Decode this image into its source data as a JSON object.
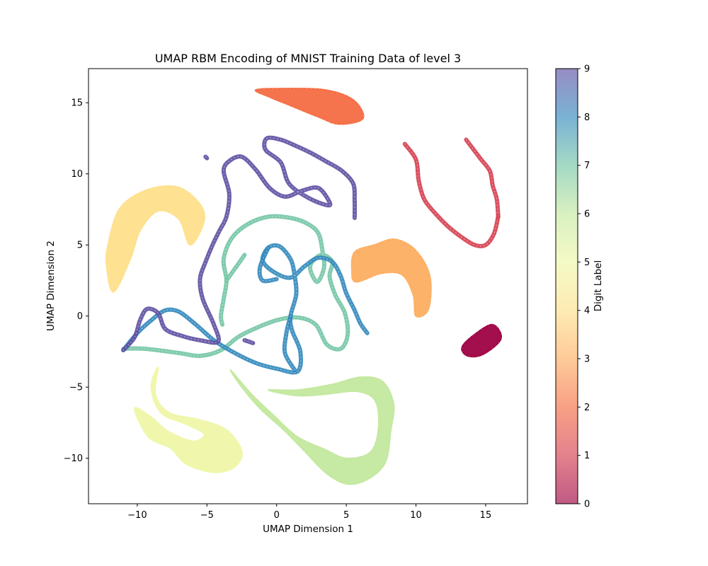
{
  "chart_data": {
    "type": "scatter",
    "title": "UMAP RBM Encoding of MNIST Training Data of level 3",
    "xlabel": "UMAP Dimension 1",
    "ylabel": "UMAP Dimension 2",
    "xlim": [
      -13.5,
      18
    ],
    "ylim": [
      -13.2,
      17.4
    ],
    "xticks": [
      -10,
      -5,
      0,
      5,
      10,
      15
    ],
    "yticks": [
      -10,
      -5,
      0,
      5,
      10,
      15
    ],
    "grid": false,
    "colormap": "Spectral",
    "colorbar": {
      "label": "Digit Label",
      "range": [
        0,
        9
      ],
      "ticks": [
        0,
        1,
        2,
        3,
        4,
        5,
        6,
        7,
        8,
        9
      ]
    },
    "series": [
      {
        "label": 0,
        "color": "#9e0142",
        "shape": "blob",
        "points": [
          [
            14.2,
            -1.3
          ],
          [
            15.5,
            -0.6
          ],
          [
            16.1,
            -1.6
          ],
          [
            14.8,
            -2.7
          ],
          [
            13.7,
            -2.8
          ],
          [
            13.3,
            -2.2
          ]
        ]
      },
      {
        "label": 1,
        "color": "#d53e4f",
        "shape": "ribbons",
        "paths": [
          [
            [
              9.2,
              12.1
            ],
            [
              10.0,
              11.0
            ],
            [
              10.2,
              9.5
            ],
            [
              10.6,
              8.2
            ],
            [
              11.4,
              7.2
            ],
            [
              12.3,
              6.3
            ],
            [
              13.2,
              5.6
            ],
            [
              14.2,
              5.0
            ],
            [
              15.0,
              5.0
            ],
            [
              15.6,
              5.8
            ],
            [
              15.9,
              7.0
            ]
          ],
          [
            [
              13.6,
              12.4
            ],
            [
              14.6,
              11.1
            ],
            [
              15.3,
              10.2
            ],
            [
              15.5,
              9.2
            ],
            [
              15.8,
              8.2
            ],
            [
              15.9,
              7.0
            ]
          ]
        ]
      },
      {
        "label": 2,
        "color": "#f46d43",
        "shape": "blob",
        "points": [
          [
            -1.5,
            15.9
          ],
          [
            0.5,
            16.0
          ],
          [
            3.5,
            15.9
          ],
          [
            5.5,
            15.2
          ],
          [
            6.2,
            13.9
          ],
          [
            4.5,
            13.5
          ],
          [
            3.0,
            14.0
          ],
          [
            1.0,
            14.8
          ],
          [
            -0.5,
            15.4
          ]
        ]
      },
      {
        "label": 3,
        "color": "#fdae61",
        "shape": "blob",
        "points": [
          [
            5.6,
            4.5
          ],
          [
            7.0,
            5.0
          ],
          [
            8.5,
            5.4
          ],
          [
            10.0,
            4.6
          ],
          [
            11.0,
            2.8
          ],
          [
            10.9,
            0.5
          ],
          [
            10.0,
            0.0
          ],
          [
            9.8,
            1.5
          ],
          [
            9.0,
            2.9
          ],
          [
            7.5,
            3.0
          ],
          [
            5.7,
            2.4
          ],
          [
            5.4,
            3.2
          ]
        ]
      },
      {
        "label": 4,
        "color": "#fee08b",
        "shape": "blob",
        "points": [
          [
            -12.1,
            5.0
          ],
          [
            -11.3,
            7.5
          ],
          [
            -9.5,
            8.8
          ],
          [
            -7.2,
            9.1
          ],
          [
            -5.6,
            8.0
          ],
          [
            -5.2,
            6.7
          ],
          [
            -6.2,
            5.0
          ],
          [
            -7.0,
            6.8
          ],
          [
            -8.5,
            7.4
          ],
          [
            -9.8,
            6.0
          ],
          [
            -10.5,
            4.0
          ],
          [
            -11.7,
            1.7
          ],
          [
            -12.2,
            3.5
          ]
        ]
      },
      {
        "label": 5,
        "color": "#eff7a8",
        "shape": "blob",
        "points": [
          [
            -8.5,
            -3.6
          ],
          [
            -8.7,
            -5.5
          ],
          [
            -7.7,
            -6.8
          ],
          [
            -5.5,
            -7.3
          ],
          [
            -3.6,
            -8.0
          ],
          [
            -2.5,
            -9.5
          ],
          [
            -3.0,
            -10.6
          ],
          [
            -4.5,
            -11.0
          ],
          [
            -6.5,
            -10.4
          ],
          [
            -7.6,
            -9.3
          ],
          [
            -9.2,
            -8.5
          ],
          [
            -10.2,
            -6.5
          ],
          [
            -9.0,
            -7.1
          ],
          [
            -7.8,
            -8.1
          ],
          [
            -6.0,
            -8.8
          ],
          [
            -5.2,
            -8.3
          ],
          [
            -6.5,
            -7.6
          ],
          [
            -8.3,
            -6.8
          ],
          [
            -9.0,
            -5.0
          ]
        ]
      },
      {
        "label": 6,
        "color": "#c3e89e",
        "shape": "blob",
        "points": [
          [
            -3.3,
            -3.8
          ],
          [
            -2.5,
            -5.0
          ],
          [
            -1.2,
            -6.5
          ],
          [
            0.5,
            -8.0
          ],
          [
            2.0,
            -9.5
          ],
          [
            3.5,
            -11.0
          ],
          [
            5.0,
            -11.8
          ],
          [
            6.5,
            -11.5
          ],
          [
            7.8,
            -10.3
          ],
          [
            8.2,
            -8.0
          ],
          [
            8.4,
            -6.2
          ],
          [
            7.6,
            -4.6
          ],
          [
            6.0,
            -4.3
          ],
          [
            4.0,
            -4.8
          ],
          [
            1.5,
            -5.2
          ],
          [
            -0.6,
            -5.2
          ],
          [
            1.5,
            -5.6
          ],
          [
            3.5,
            -5.5
          ],
          [
            5.8,
            -5.3
          ],
          [
            7.1,
            -6.0
          ],
          [
            7.3,
            -8.0
          ],
          [
            6.7,
            -9.6
          ],
          [
            5.0,
            -10.0
          ],
          [
            3.5,
            -9.4
          ],
          [
            1.5,
            -8.5
          ],
          [
            -0.2,
            -7.0
          ],
          [
            -1.8,
            -5.5
          ]
        ]
      },
      {
        "label": 7,
        "color": "#73c5a5",
        "shape": "ribbons",
        "paths": [
          [
            [
              -11.0,
              -2.3
            ],
            [
              -9.5,
              -2.3
            ],
            [
              -7.0,
              -2.6
            ],
            [
              -5.5,
              -2.8
            ],
            [
              -4.0,
              -2.4
            ],
            [
              -2.8,
              -1.5
            ],
            [
              -1.6,
              -0.9
            ],
            [
              0.0,
              -0.3
            ],
            [
              1.5,
              -0.1
            ],
            [
              2.8,
              -0.6
            ],
            [
              3.6,
              -2.0
            ],
            [
              4.6,
              -2.3
            ],
            [
              5.1,
              -1.3
            ],
            [
              4.9,
              0.2
            ],
            [
              4.2,
              1.5
            ],
            [
              3.8,
              2.8
            ],
            [
              4.0,
              3.8
            ],
            [
              3.2,
              4.3
            ],
            [
              2.4,
              3.5
            ],
            [
              2.9,
              2.4
            ],
            [
              3.4,
              3.4
            ],
            [
              3.3,
              4.5
            ],
            [
              3.0,
              5.8
            ],
            [
              2.2,
              6.5
            ],
            [
              1.0,
              6.9
            ],
            [
              -0.5,
              7.0
            ],
            [
              -2.0,
              6.5
            ],
            [
              -3.2,
              5.5
            ],
            [
              -3.8,
              4.0
            ],
            [
              -3.6,
              2.5
            ],
            [
              -3.8,
              1.2
            ],
            [
              -4.0,
              0.0
            ],
            [
              -3.9,
              -0.6
            ]
          ],
          [
            [
              -3.6,
              2.5
            ],
            [
              -2.8,
              3.6
            ],
            [
              -2.3,
              4.3
            ]
          ]
        ]
      },
      {
        "label": 8,
        "color": "#3288bd",
        "shape": "ribbons",
        "paths": [
          [
            [
              -11.0,
              -2.4
            ],
            [
              -10.0,
              -1.2
            ],
            [
              -9.0,
              -0.3
            ],
            [
              -8.0,
              0.4
            ],
            [
              -7.0,
              0.3
            ],
            [
              -5.8,
              -0.6
            ],
            [
              -4.5,
              -1.7
            ],
            [
              -3.0,
              -2.6
            ],
            [
              -1.5,
              -3.3
            ],
            [
              0.0,
              -3.7
            ],
            [
              1.5,
              -3.9
            ],
            [
              1.7,
              -2.5
            ],
            [
              1.1,
              -1.0
            ],
            [
              1.0,
              0.0
            ],
            [
              1.4,
              1.5
            ],
            [
              1.3,
              2.8
            ],
            [
              1.0,
              4.0
            ],
            [
              0.2,
              4.9
            ],
            [
              -0.6,
              4.8
            ],
            [
              -1.0,
              3.9
            ],
            [
              -0.2,
              3.1
            ],
            [
              1.0,
              2.7
            ],
            [
              2.0,
              3.5
            ],
            [
              3.0,
              4.1
            ],
            [
              4.0,
              3.8
            ],
            [
              4.6,
              2.8
            ],
            [
              5.0,
              1.6
            ],
            [
              5.6,
              0.4
            ],
            [
              6.0,
              -0.5
            ],
            [
              6.5,
              -1.2
            ]
          ],
          [
            [
              -0.6,
              4.8
            ],
            [
              -1.2,
              3.4
            ],
            [
              -1.0,
              2.5
            ],
            [
              0.0,
              2.6
            ]
          ],
          [
            [
              1.0,
              0.0
            ],
            [
              0.7,
              -1.2
            ],
            [
              0.6,
              -2.6
            ],
            [
              1.3,
              -3.8
            ]
          ]
        ]
      },
      {
        "label": 9,
        "color": "#5e4fa2",
        "shape": "ribbons",
        "paths": [
          [
            [
              -11.0,
              -2.4
            ],
            [
              -10.2,
              -1.5
            ],
            [
              -9.8,
              -0.3
            ],
            [
              -9.3,
              0.5
            ],
            [
              -8.5,
              0.2
            ],
            [
              -8.0,
              -0.9
            ],
            [
              -6.8,
              -1.4
            ],
            [
              -5.5,
              -1.7
            ],
            [
              -4.2,
              -1.8
            ],
            [
              -4.5,
              -0.6
            ],
            [
              -5.3,
              1.2
            ],
            [
              -5.5,
              2.6
            ],
            [
              -5.1,
              3.8
            ],
            [
              -4.6,
              5.0
            ],
            [
              -4.1,
              6.0
            ],
            [
              -3.6,
              7.0
            ],
            [
              -3.4,
              8.6
            ],
            [
              -3.8,
              10.2
            ],
            [
              -3.4,
              10.9
            ],
            [
              -2.5,
              11.2
            ],
            [
              -1.5,
              10.3
            ],
            [
              -0.5,
              9.0
            ],
            [
              0.6,
              8.4
            ],
            [
              1.8,
              8.8
            ],
            [
              3.0,
              9.0
            ],
            [
              3.8,
              8.0
            ],
            [
              3.6,
              7.8
            ],
            [
              2.3,
              8.3
            ],
            [
              0.9,
              9.3
            ],
            [
              0.3,
              10.8
            ],
            [
              -0.8,
              11.7
            ],
            [
              -0.7,
              12.5
            ],
            [
              0.3,
              12.4
            ],
            [
              1.3,
              12.0
            ],
            [
              2.4,
              11.5
            ],
            [
              3.5,
              10.9
            ],
            [
              4.7,
              10.2
            ],
            [
              5.5,
              9.3
            ],
            [
              5.6,
              8.1
            ],
            [
              5.6,
              6.9
            ]
          ],
          [
            [
              -5.1,
              11.2
            ],
            [
              -5.0,
              11.1
            ]
          ],
          [
            [
              -2.3,
              -1.7
            ],
            [
              -1.7,
              -1.9
            ]
          ]
        ]
      }
    ]
  }
}
